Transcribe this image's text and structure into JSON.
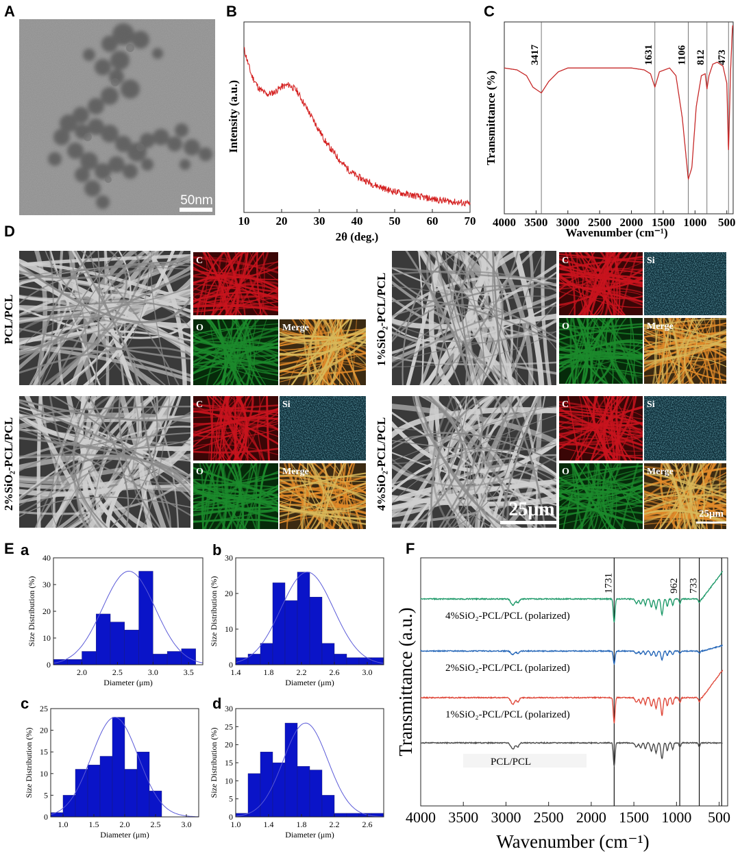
{
  "panel_letters": {
    "A": "A",
    "B": "B",
    "C": "C",
    "D": "D",
    "E": "E",
    "F": "F"
  },
  "panelA": {
    "scale_bar": "50nm"
  },
  "panelD": {
    "scale_bar_main": "25μm",
    "scale_bar_merge": "25μm",
    "samples": [
      {
        "label": "PCL/PCL",
        "maps": [
          "C",
          "O",
          "Merge"
        ]
      },
      {
        "label": "1%SiO₂-PCL/PCL",
        "maps": [
          "C",
          "Si",
          "O",
          "Merge"
        ]
      },
      {
        "label": "2%SiO₂-PCL/PCL",
        "maps": [
          "C",
          "Si",
          "O",
          "Merge"
        ]
      },
      {
        "label": "4%SiO₂-PCL/PCL",
        "maps": [
          "C",
          "Si",
          "O",
          "Merge"
        ]
      }
    ],
    "colors": {
      "C": "#c8141e",
      "Si": "#155566",
      "O": "#1c8a2c"
    }
  },
  "chart_data": [
    {
      "panel": "B",
      "type": "line",
      "xlabel": "2θ (deg.)",
      "ylabel": "Intensity (a.u.)",
      "xlim": [
        10,
        70
      ],
      "xticks": [
        10,
        20,
        30,
        40,
        50,
        60,
        70
      ],
      "series": [
        {
          "color": "#d42020",
          "x": [
            10,
            12,
            14,
            16,
            18,
            20,
            22,
            24,
            26,
            28,
            30,
            32,
            34,
            36,
            38,
            40,
            44,
            48,
            52,
            56,
            60,
            64,
            68,
            70
          ],
          "y": [
            0.86,
            0.72,
            0.65,
            0.62,
            0.63,
            0.66,
            0.67,
            0.64,
            0.57,
            0.5,
            0.43,
            0.36,
            0.31,
            0.26,
            0.22,
            0.19,
            0.15,
            0.12,
            0.1,
            0.085,
            0.07,
            0.06,
            0.05,
            0.045
          ]
        }
      ]
    },
    {
      "panel": "C",
      "type": "line",
      "xlabel": "Wavenumber (cm⁻¹)",
      "ylabel": "Transmittance (%)",
      "xlim": [
        4000,
        400
      ],
      "xticks": [
        4000,
        3500,
        3000,
        2500,
        2000,
        1500,
        1000,
        500
      ],
      "peaks": [
        "3417",
        "1631",
        "1106",
        "812",
        "473"
      ],
      "peak_positions": [
        3417,
        1631,
        1106,
        812,
        473
      ],
      "series": [
        {
          "color": "#c62828",
          "x": [
            4000,
            3800,
            3650,
            3550,
            3417,
            3300,
            3150,
            3000,
            2800,
            2600,
            2400,
            2200,
            2000,
            1800,
            1700,
            1631,
            1560,
            1400,
            1300,
            1200,
            1106,
            1050,
            980,
            900,
            840,
            812,
            780,
            720,
            650,
            560,
            500,
            473,
            440,
            410
          ],
          "y": [
            0.76,
            0.75,
            0.72,
            0.66,
            0.63,
            0.69,
            0.74,
            0.76,
            0.76,
            0.76,
            0.76,
            0.76,
            0.76,
            0.75,
            0.73,
            0.66,
            0.74,
            0.76,
            0.72,
            0.5,
            0.18,
            0.24,
            0.56,
            0.72,
            0.73,
            0.65,
            0.72,
            0.78,
            0.79,
            0.77,
            0.68,
            0.32,
            0.75,
            0.98
          ]
        }
      ]
    },
    {
      "panel": "E-a",
      "type": "bar",
      "xlabel": "Diameter (μm)",
      "ylabel": "Size Distribution (%)",
      "xlim": [
        1.6,
        3.7
      ],
      "ylim": [
        0,
        40
      ],
      "xticks": [
        "2.0",
        "2.5",
        "3.0",
        "3.5"
      ],
      "yticks": [
        "0",
        "10",
        "20",
        "30",
        "40"
      ],
      "bin_width": 0.2,
      "bin_starts": [
        1.6,
        1.8,
        2.0,
        2.2,
        2.4,
        2.6,
        2.8,
        3.0,
        3.2,
        3.4
      ],
      "values": [
        2,
        2,
        5,
        19,
        16,
        13,
        35,
        4,
        5,
        6
      ],
      "fit": {
        "mean": 2.66,
        "sd": 0.37,
        "peak": 35
      }
    },
    {
      "panel": "E-b",
      "type": "bar",
      "xlabel": "Diameter (μm)",
      "ylabel": "Size Distribution (%)",
      "xlim": [
        1.4,
        3.2
      ],
      "ylim": [
        0,
        30
      ],
      "xticks": [
        "1.4",
        "1.8",
        "2.2",
        "2.6",
        "3.0"
      ],
      "yticks": [
        "0",
        "10",
        "20",
        "30"
      ],
      "bin_width": 0.15,
      "bin_starts": [
        1.4,
        1.55,
        1.7,
        1.85,
        2.0,
        2.15,
        2.3,
        2.45,
        2.6,
        2.75,
        2.9,
        3.05
      ],
      "values": [
        2,
        3,
        6,
        23,
        18,
        26,
        19,
        6,
        3,
        2,
        2,
        2
      ],
      "fit": {
        "mean": 2.27,
        "sd": 0.32,
        "peak": 26
      }
    },
    {
      "panel": "E-c",
      "type": "bar",
      "xlabel": "Diameter (μm)",
      "ylabel": "Size Distribution (%)",
      "xlim": [
        0.8,
        3.2
      ],
      "ylim": [
        0,
        25
      ],
      "xticks": [
        "1.0",
        "1.5",
        "2.0",
        "2.5",
        "3.0"
      ],
      "yticks": [
        "0",
        "5",
        "10",
        "15",
        "20",
        "25"
      ],
      "bin_width": 0.2,
      "bin_starts": [
        0.8,
        1.0,
        1.2,
        1.4,
        1.6,
        1.8,
        2.0,
        2.2,
        2.4
      ],
      "values": [
        1,
        5,
        11,
        12,
        14,
        23,
        11,
        15,
        6
      ],
      "fit": {
        "mean": 1.84,
        "sd": 0.38,
        "peak": 23
      }
    },
    {
      "panel": "E-d",
      "type": "bar",
      "xlabel": "Diameter (μm)",
      "ylabel": "Size Distribution (%)",
      "xlim": [
        1.0,
        2.8
      ],
      "ylim": [
        0,
        30
      ],
      "xticks": [
        "1.0",
        "1.4",
        "1.8",
        "2.2",
        "2.6"
      ],
      "yticks": [
        "0",
        "5",
        "10",
        "15",
        "20",
        "25",
        "30"
      ],
      "bin_width": 0.15,
      "bin_starts": [
        1.0,
        1.15,
        1.3,
        1.45,
        1.6,
        1.75,
        1.9,
        2.05,
        2.2,
        2.35,
        2.5,
        2.65
      ],
      "values": [
        1,
        12,
        18,
        15,
        26,
        14,
        13,
        6,
        1,
        1,
        1,
        1
      ],
      "fit": {
        "mean": 1.85,
        "sd": 0.27,
        "peak": 26
      }
    },
    {
      "panel": "F",
      "type": "line",
      "xlabel": "Wavenumber (cm⁻¹)",
      "ylabel": "Transmittance (a.u.)",
      "xlim": [
        4000,
        400
      ],
      "xticks": [
        4000,
        3500,
        3000,
        2500,
        2000,
        1500,
        1000,
        500
      ],
      "vlines": [
        1731,
        962,
        733,
        470
      ],
      "peaks": [
        "1731",
        "962",
        "733"
      ],
      "series": [
        {
          "name": "4%SiO₂-PCL/PCL (polarized)",
          "color": "#1f9a6a",
          "offset": 3.0
        },
        {
          "name": "2%SiO₂-PCL/PCL (polarized)",
          "color": "#2466b8",
          "offset": 2.0
        },
        {
          "name": "1%SiO₂-PCL/PCL (polarized)",
          "color": "#e04a3c",
          "offset": 1.0
        },
        {
          "name": "PCL/PCL",
          "color": "#4a4a4a",
          "offset": 0.0
        }
      ]
    }
  ]
}
